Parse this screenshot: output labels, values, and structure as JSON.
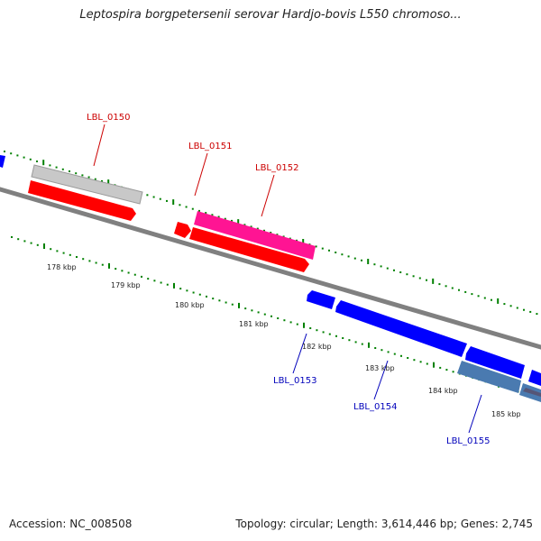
{
  "title": "Leptospira borgpetersenii serovar Hardjo-bovis L550 chromoso...",
  "footer": {
    "accession": "Accession: NC_008508",
    "topology": "Topology: circular; Length: 3,614,446 bp; Genes: 2,745"
  },
  "scale_labels": [
    "178 kbp",
    "179 kbp",
    "180 kbp",
    "181 kbp",
    "182 kbp",
    "183 kbp",
    "184 kbp",
    "185 kbp"
  ],
  "gene_labels": [
    {
      "name": "LBL_0150",
      "color": "#cc0000"
    },
    {
      "name": "LBL_0151",
      "color": "#cc0000"
    },
    {
      "name": "LBL_0152",
      "color": "#cc0000"
    },
    {
      "name": "LBL_0153",
      "color": "#0000bb"
    },
    {
      "name": "LBL_0154",
      "color": "#0000bb"
    },
    {
      "name": "LBL_0155",
      "color": "#0000bb"
    }
  ],
  "colors": {
    "forward_cds": "#ff0000",
    "reverse_cds": "#0000ff",
    "highlight_pink": "#ff1493",
    "pseudo_gray": "#c8c8c8",
    "steel_blue": "#4a7ab0",
    "backbone": "#808080",
    "tick_green": "#008000"
  }
}
